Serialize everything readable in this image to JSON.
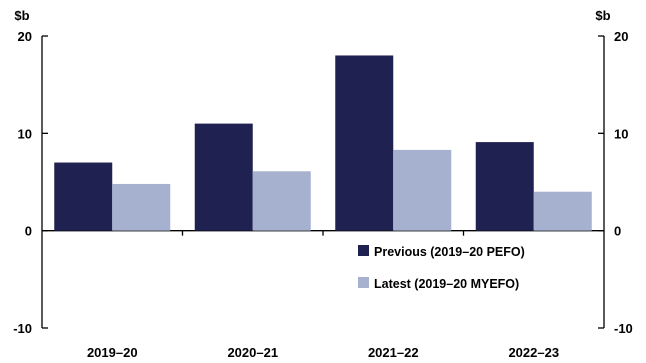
{
  "chart_data": {
    "type": "bar",
    "categories": [
      "2019–20",
      "2020–21",
      "2021–22",
      "2022–23"
    ],
    "series": [
      {
        "name": "Previous (2019–20 PEFO)",
        "values": [
          7.0,
          11.0,
          18.0,
          9.1
        ],
        "color": "#1f2150"
      },
      {
        "name": "Latest (2019–20 MYEFO)",
        "values": [
          4.8,
          6.1,
          8.3,
          4.0
        ],
        "color": "#a6b0cf"
      }
    ],
    "ylim": [
      -10,
      20
    ],
    "yticks": [
      -10,
      0,
      10,
      20
    ],
    "ylabel_left": "$b",
    "ylabel_right": "$b",
    "grid": false,
    "legend_position": "bottom-right-inside"
  }
}
